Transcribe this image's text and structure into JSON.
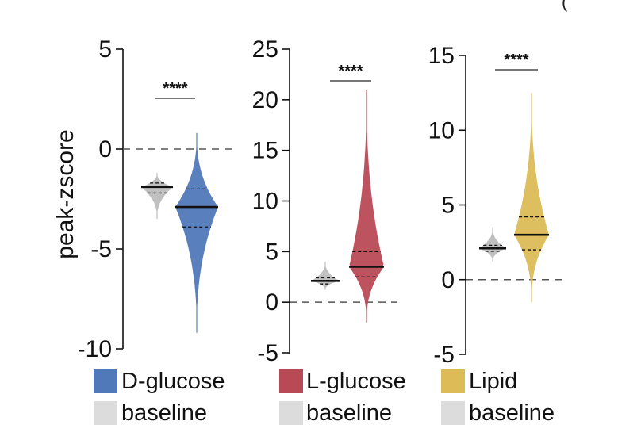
{
  "panel_label": "(",
  "colors": {
    "dglucose": "#5079b9",
    "lglucose": "#b84a55",
    "lipid": "#dcbc56",
    "baseline": "#bdbdbd"
  },
  "legend": {
    "dglucose": "D-glucose",
    "lglucose": "L-glucose",
    "lipid": "Lipid",
    "baseline1": "baseline",
    "baseline2": "baseline",
    "baseline3": "baseline"
  },
  "chart_data": [
    {
      "type": "violin",
      "ylabel": "peak-zscore",
      "ylim": [
        -10,
        5
      ],
      "yticks": [
        5,
        0,
        -5,
        -10
      ],
      "reference_line": 0,
      "significance": "****",
      "series": [
        {
          "name": "baseline",
          "color": "#bdbdbd",
          "median": -1.9,
          "q1": -2.2,
          "q3": -1.7,
          "min": -3.5,
          "max": -1.2
        },
        {
          "name": "D-glucose",
          "color": "#5079b9",
          "median": -2.9,
          "q1": -3.9,
          "q3": -2.0,
          "min": -9.2,
          "max": 0.8
        }
      ]
    },
    {
      "type": "violin",
      "ylabel": "",
      "ylim": [
        -5,
        25
      ],
      "yticks": [
        25,
        20,
        15,
        10,
        5,
        0,
        -5
      ],
      "reference_line": 0,
      "significance": "****",
      "series": [
        {
          "name": "baseline",
          "color": "#bdbdbd",
          "median": 2.1,
          "q1": 1.8,
          "q3": 2.4,
          "min": 1.2,
          "max": 4.0
        },
        {
          "name": "L-glucose",
          "color": "#b84a55",
          "median": 3.5,
          "q1": 2.5,
          "q3": 5.0,
          "min": -2.0,
          "max": 21.0
        }
      ]
    },
    {
      "type": "violin",
      "ylabel": "",
      "ylim": [
        -5,
        15
      ],
      "yticks": [
        15,
        10,
        5,
        0,
        -5
      ],
      "reference_line": 0,
      "significance": "****",
      "series": [
        {
          "name": "baseline",
          "color": "#bdbdbd",
          "median": 2.1,
          "q1": 1.9,
          "q3": 2.3,
          "min": 1.2,
          "max": 3.5
        },
        {
          "name": "Lipid",
          "color": "#dcbc56",
          "median": 3.0,
          "q1": 2.0,
          "q3": 4.2,
          "min": -1.5,
          "max": 12.5
        }
      ]
    }
  ]
}
